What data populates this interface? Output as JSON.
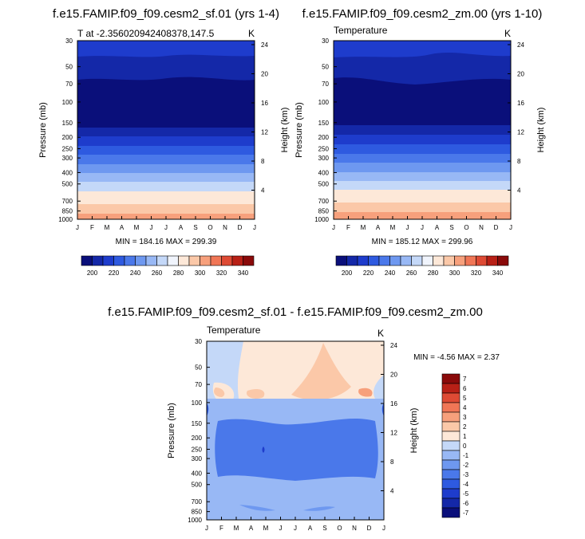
{
  "chart_data": [
    {
      "type": "contour",
      "title": "f.e15.FAMIP.f09_f09.cesm2_sf.01 (yrs 1-4)",
      "subtitle_left": "T at -2.356020942408378,147.5",
      "units": "K",
      "ylabel": "Pressure (mb)",
      "ylabel_right": "Height (km)",
      "x_ticks": [
        "J",
        "F",
        "M",
        "A",
        "M",
        "J",
        "J",
        "A",
        "S",
        "O",
        "N",
        "D",
        "J"
      ],
      "y_ticks": [
        "30",
        "50",
        "70",
        "100",
        "150",
        "200",
        "250",
        "300",
        "400",
        "500",
        "700",
        "850",
        "1000"
      ],
      "y_ticks_right": [
        "24",
        "20",
        "16",
        "12",
        "8",
        "4"
      ],
      "stats": "MIN = 184.16 MAX = 299.39",
      "levels": [
        200,
        210,
        220,
        230,
        240,
        250,
        260,
        270,
        280,
        290,
        300,
        310,
        320,
        330,
        340
      ],
      "colorbar_labels": [
        "200",
        "220",
        "240",
        "260",
        "280",
        "300",
        "320",
        "340"
      ]
    },
    {
      "type": "contour",
      "title": "f.e15.FAMIP.f09_f09.cesm2_zm.00 (yrs 1-10)",
      "subtitle_left": "Temperature",
      "units": "K",
      "ylabel": "Pressure (mb)",
      "ylabel_right": "Height (km)",
      "x_ticks": [
        "J",
        "F",
        "M",
        "A",
        "M",
        "J",
        "J",
        "A",
        "S",
        "O",
        "N",
        "D",
        "J"
      ],
      "y_ticks": [
        "30",
        "50",
        "70",
        "100",
        "150",
        "200",
        "250",
        "300",
        "400",
        "500",
        "700",
        "850",
        "1000"
      ],
      "y_ticks_right": [
        "24",
        "20",
        "16",
        "12",
        "8",
        "4"
      ],
      "stats": "MIN = 185.12 MAX = 299.96",
      "levels": [
        200,
        210,
        220,
        230,
        240,
        250,
        260,
        270,
        280,
        290,
        300,
        310,
        320,
        330,
        340
      ],
      "colorbar_labels": [
        "200",
        "220",
        "240",
        "260",
        "280",
        "300",
        "320",
        "340"
      ]
    },
    {
      "type": "contour",
      "title": "f.e15.FAMIP.f09_f09.cesm2_sf.01 - f.e15.FAMIP.f09_f09.cesm2_zm.00",
      "subtitle_left": "Temperature",
      "units": "K",
      "ylabel": "Pressure (mb)",
      "ylabel_right": "Height (km)",
      "x_ticks": [
        "J",
        "F",
        "M",
        "A",
        "M",
        "J",
        "J",
        "A",
        "S",
        "O",
        "N",
        "D",
        "J"
      ],
      "y_ticks": [
        "30",
        "50",
        "70",
        "100",
        "150",
        "200",
        "250",
        "300",
        "400",
        "500",
        "700",
        "850",
        "1000"
      ],
      "y_ticks_right": [
        "24",
        "20",
        "16",
        "12",
        "8",
        "4"
      ],
      "stats": "MIN = -4.56 MAX = 2.37",
      "levels": [
        -7,
        -6,
        -5,
        -4,
        -3,
        -2,
        -1,
        0,
        1,
        2,
        3,
        4,
        5,
        6,
        7
      ],
      "colorbar_labels": [
        "7",
        "6",
        "5",
        "4",
        "3",
        "2",
        "1",
        "0",
        "-1",
        "-2",
        "-3",
        "-4",
        "-5",
        "-6",
        "-7"
      ]
    }
  ],
  "colors": {
    "abs_scale": [
      "#0a0f7a",
      "#1428a8",
      "#1e3ccc",
      "#2e5ae0",
      "#4a78ea",
      "#6e98f0",
      "#98b8f5",
      "#c4d8f8",
      "#f0f4fc",
      "#fde8d8",
      "#fbc8a8",
      "#f7a07c",
      "#f07656",
      "#de4a34",
      "#b82016",
      "#8a0a0a"
    ],
    "diff_scale": [
      "#0a0f7a",
      "#1428a8",
      "#1e3ccc",
      "#2e5ae0",
      "#4a78ea",
      "#6e98f0",
      "#98b8f5",
      "#c4d8f8",
      "#fde8d8",
      "#fbc8a8",
      "#f7a07c",
      "#f07656",
      "#de4a34",
      "#b82016",
      "#8a0a0a"
    ]
  }
}
